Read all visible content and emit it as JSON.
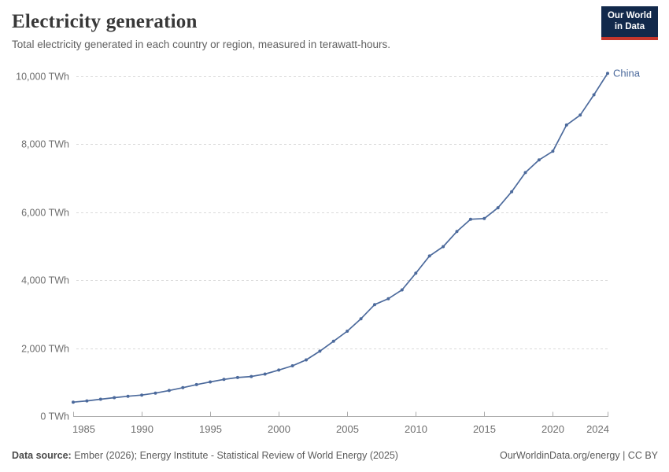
{
  "header": {
    "title": "Electricity generation",
    "subtitle": "Total electricity generated in each country or region, measured in terawatt-hours."
  },
  "logo": {
    "line1": "Our World",
    "line2": "in Data",
    "bg_color": "#12294B",
    "accent_color": "#C5362C"
  },
  "chart_data": {
    "type": "line",
    "title": "Electricity generation",
    "xlabel": "",
    "ylabel": "TWh",
    "xlim": [
      1985,
      2024
    ],
    "ylim": [
      0,
      10000
    ],
    "grid": "horizontal-dashed",
    "legend_position": "end-of-line",
    "x": [
      1985,
      1986,
      1987,
      1988,
      1989,
      1990,
      1991,
      1992,
      1993,
      1994,
      1995,
      1996,
      1997,
      1998,
      1999,
      2000,
      2001,
      2002,
      2003,
      2004,
      2005,
      2006,
      2007,
      2008,
      2009,
      2010,
      2011,
      2012,
      2013,
      2014,
      2015,
      2016,
      2017,
      2018,
      2019,
      2020,
      2021,
      2022,
      2023,
      2024
    ],
    "series": [
      {
        "name": "China",
        "color": "#4C6A9C",
        "values": [
          411,
          450,
          497,
          545,
          585,
          621,
          678,
          754,
          839,
          928,
          1007,
          1081,
          1136,
          1167,
          1239,
          1356,
          1481,
          1654,
          1911,
          2203,
          2500,
          2866,
          3282,
          3457,
          3715,
          4207,
          4713,
          4988,
          5432,
          5794,
          5815,
          6133,
          6604,
          7166,
          7539,
          7795,
          8567,
          8858,
          9456,
          10087
        ]
      }
    ],
    "yticks": [
      {
        "value": 0,
        "label": "0 TWh"
      },
      {
        "value": 2000,
        "label": "2,000 TWh"
      },
      {
        "value": 4000,
        "label": "4,000 TWh"
      },
      {
        "value": 6000,
        "label": "6,000 TWh"
      },
      {
        "value": 8000,
        "label": "8,000 TWh"
      },
      {
        "value": 10000,
        "label": "10,000 TWh"
      }
    ],
    "xticks": [
      1985,
      1990,
      1995,
      2000,
      2005,
      2010,
      2015,
      2020,
      2024
    ],
    "axis_color": "#ababab",
    "gridline_color": "#dadada"
  },
  "footer": {
    "source_label": "Data source:",
    "source_text": "Ember (2026); Energy Institute - Statistical Review of World Energy (2025)",
    "right_text": "OurWorldinData.org/energy | CC BY"
  }
}
